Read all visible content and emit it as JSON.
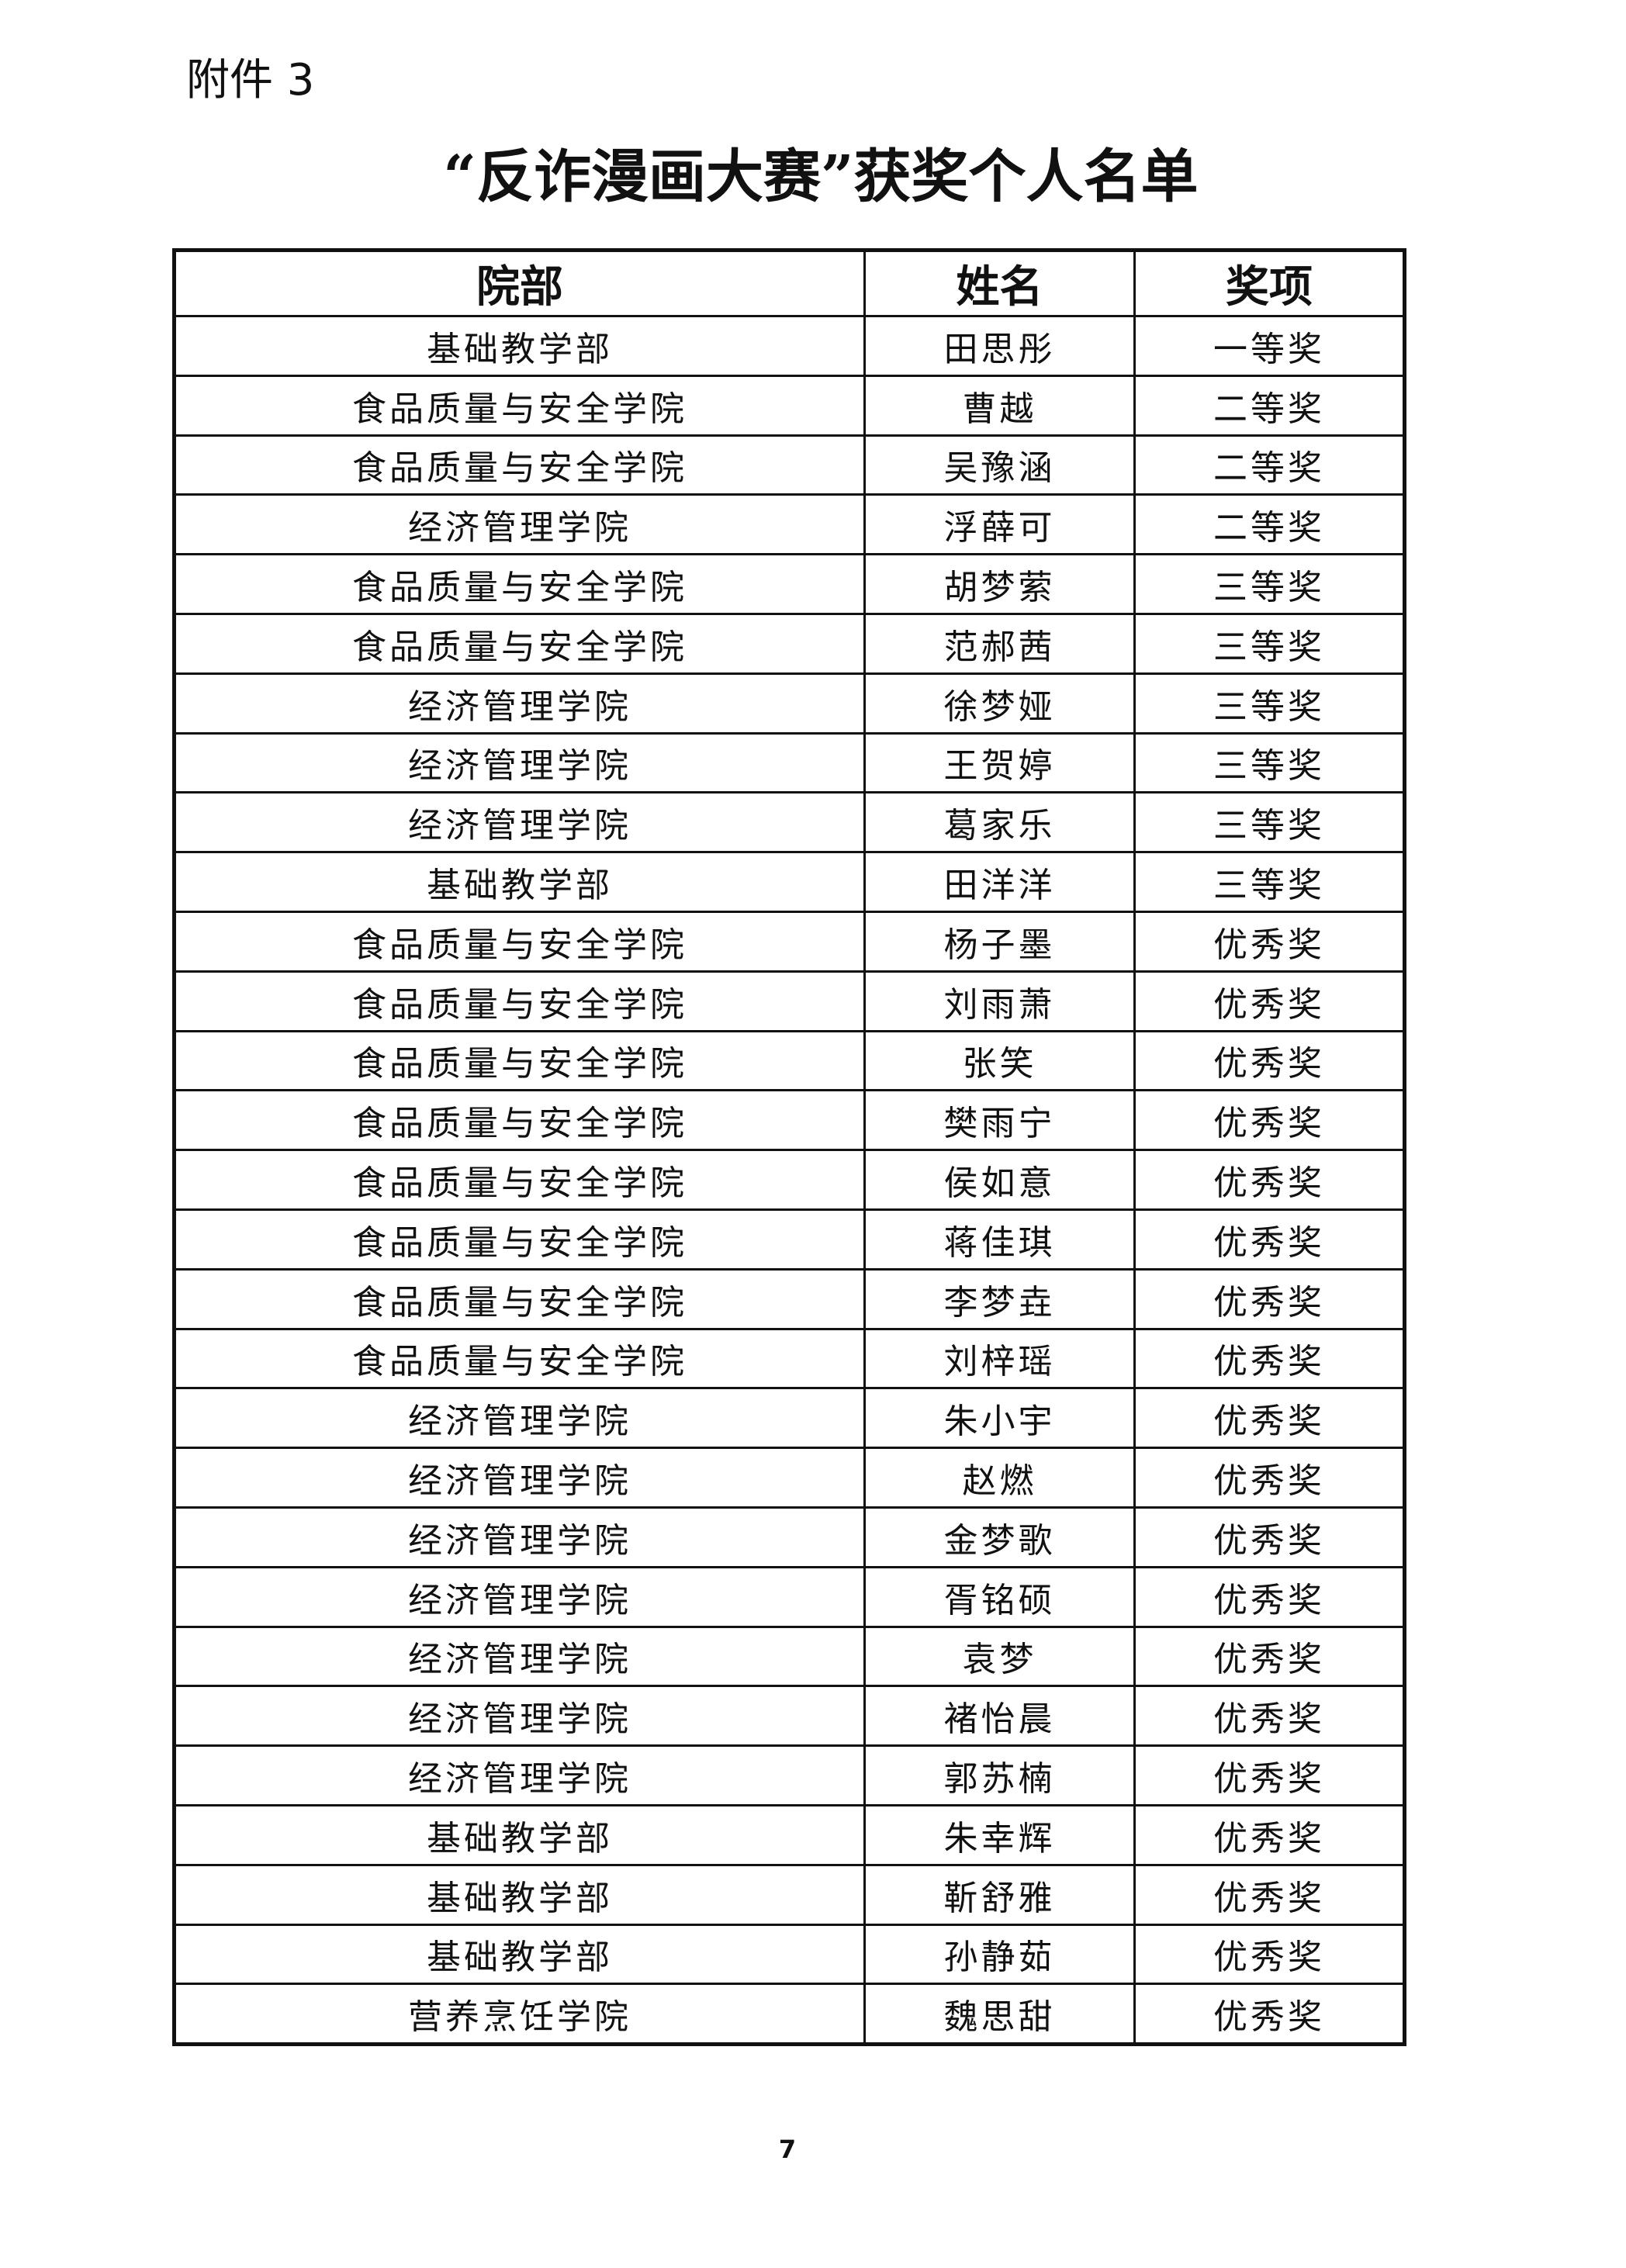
{
  "attachment_label": "附件 3",
  "title": "“反诈漫画大赛”获奖个人名单",
  "table": {
    "headers": [
      "院部",
      "姓名",
      "奖项"
    ],
    "rows": [
      [
        "基础教学部",
        "田思彤",
        "一等奖"
      ],
      [
        "食品质量与安全学院",
        "曹越",
        "二等奖"
      ],
      [
        "食品质量与安全学院",
        "吴豫涵",
        "二等奖"
      ],
      [
        "经济管理学院",
        "浮薛可",
        "二等奖"
      ],
      [
        "食品质量与安全学院",
        "胡梦萦",
        "三等奖"
      ],
      [
        "食品质量与安全学院",
        "范郝茜",
        "三等奖"
      ],
      [
        "经济管理学院",
        "徐梦娅",
        "三等奖"
      ],
      [
        "经济管理学院",
        "王贺婷",
        "三等奖"
      ],
      [
        "经济管理学院",
        "葛家乐",
        "三等奖"
      ],
      [
        "基础教学部",
        "田洋洋",
        "三等奖"
      ],
      [
        "食品质量与安全学院",
        "杨子墨",
        "优秀奖"
      ],
      [
        "食品质量与安全学院",
        "刘雨萧",
        "优秀奖"
      ],
      [
        "食品质量与安全学院",
        "张笑",
        "优秀奖"
      ],
      [
        "食品质量与安全学院",
        "樊雨宁",
        "优秀奖"
      ],
      [
        "食品质量与安全学院",
        "侯如意",
        "优秀奖"
      ],
      [
        "食品质量与安全学院",
        "蒋佳琪",
        "优秀奖"
      ],
      [
        "食品质量与安全学院",
        "李梦垚",
        "优秀奖"
      ],
      [
        "食品质量与安全学院",
        "刘梓瑶",
        "优秀奖"
      ],
      [
        "经济管理学院",
        "朱小宇",
        "优秀奖"
      ],
      [
        "经济管理学院",
        "赵燃",
        "优秀奖"
      ],
      [
        "经济管理学院",
        "金梦歌",
        "优秀奖"
      ],
      [
        "经济管理学院",
        "胥铭硕",
        "优秀奖"
      ],
      [
        "经济管理学院",
        "袁梦",
        "优秀奖"
      ],
      [
        "经济管理学院",
        "褚怡晨",
        "优秀奖"
      ],
      [
        "经济管理学院",
        "郭苏楠",
        "优秀奖"
      ],
      [
        "基础教学部",
        "朱幸辉",
        "优秀奖"
      ],
      [
        "基础教学部",
        "靳舒雅",
        "优秀奖"
      ],
      [
        "基础教学部",
        "孙静茹",
        "优秀奖"
      ],
      [
        "营养烹饪学院",
        "魏思甜",
        "优秀奖"
      ]
    ]
  },
  "page_number": "7"
}
